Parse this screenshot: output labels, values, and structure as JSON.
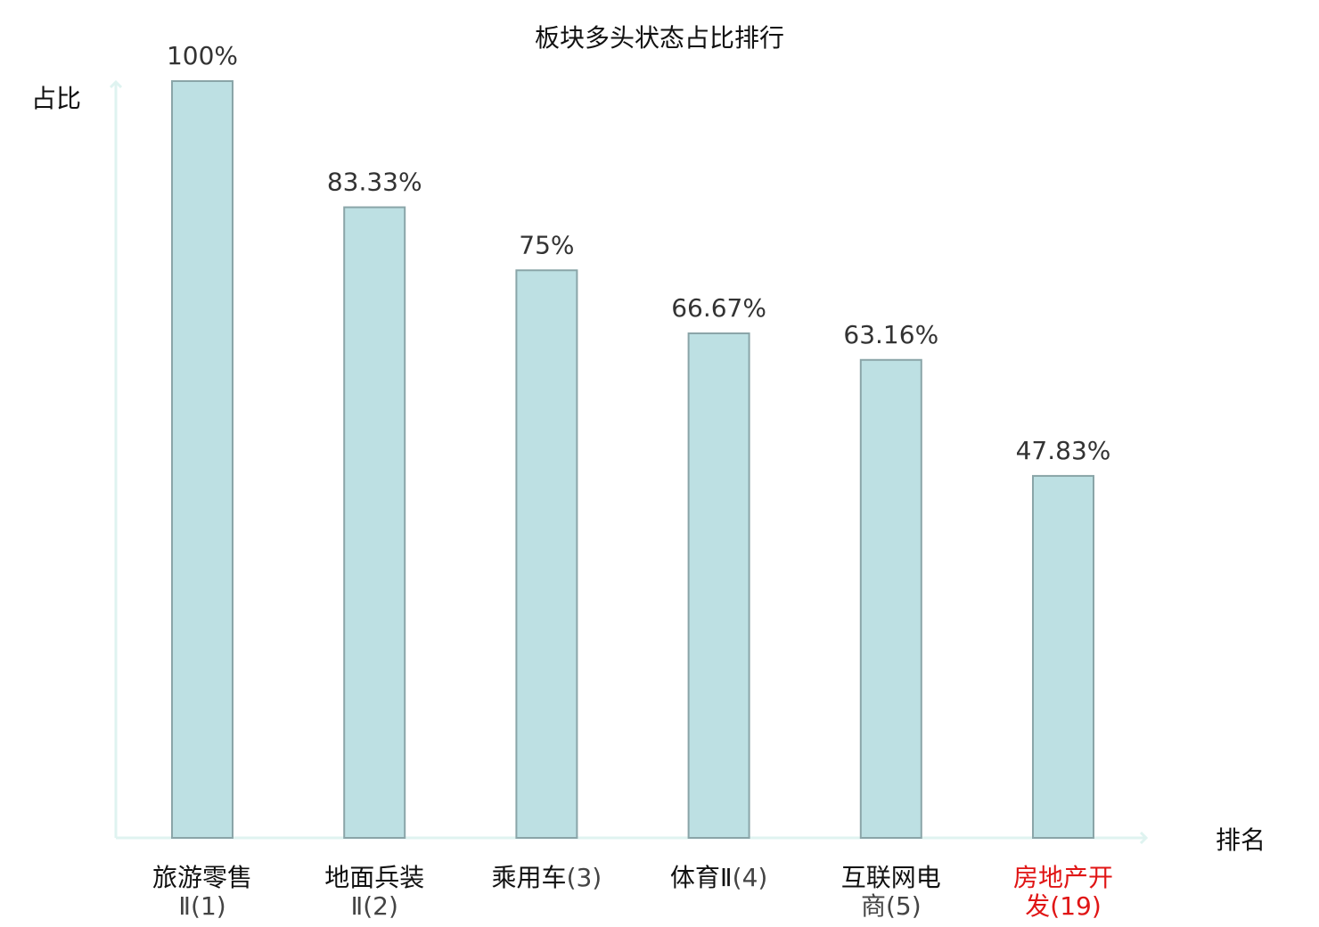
{
  "chart_data": {
    "type": "bar",
    "title": "板块多头状态占比排行",
    "ylabel": "占比",
    "xlabel": "排名",
    "ylim": [
      0,
      100
    ],
    "grid": false,
    "categories": [
      {
        "name": "旅游零售",
        "line2_prefix": "Ⅱ",
        "rank": "(1)",
        "highlight": false
      },
      {
        "name": "地面兵装",
        "line2_prefix": "Ⅱ",
        "rank": "(2)",
        "highlight": false
      },
      {
        "name": "乘用车",
        "line2_prefix": "",
        "rank": "(3)",
        "highlight": false
      },
      {
        "name": "体育Ⅱ",
        "line2_prefix": "",
        "rank": "(4)",
        "highlight": false
      },
      {
        "name": "互联网电",
        "line2_prefix": "商",
        "rank": "(5)",
        "highlight": false
      },
      {
        "name": "房地产开",
        "line2_prefix": "发",
        "rank": "(19)",
        "highlight": true
      }
    ],
    "values": [
      100,
      83.33,
      75,
      66.67,
      63.16,
      47.83
    ],
    "value_labels": [
      "100%",
      "83.33%",
      "75%",
      "66.67%",
      "63.16%",
      "47.83%"
    ],
    "colors": {
      "bar_fill": "#bde0e3",
      "bar_stroke": "#8aa5a8",
      "axis": "#dff3f0",
      "highlight_text": "#e01515",
      "normal_text": "#111111",
      "paren_text": "#444444"
    }
  }
}
